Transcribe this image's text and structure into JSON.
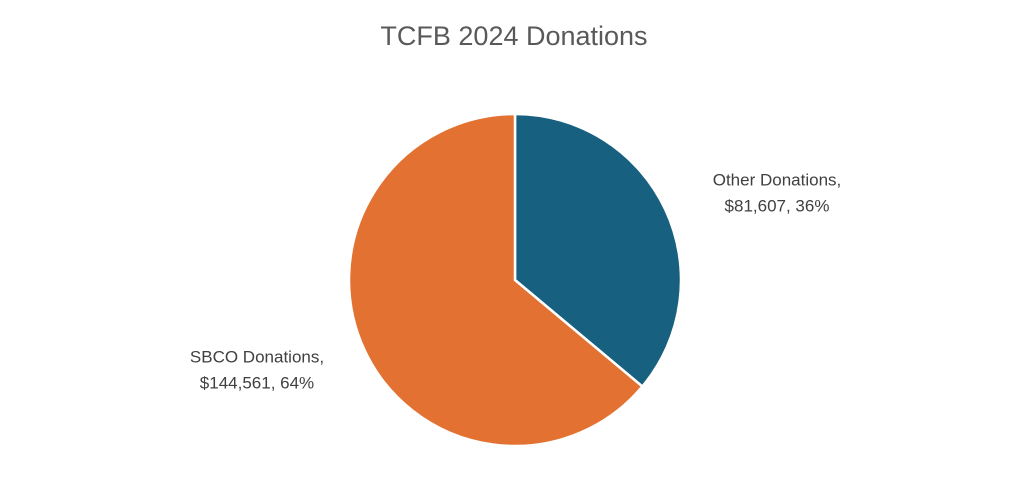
{
  "chart_data": {
    "type": "pie",
    "title": "TCFB 2024 Donations",
    "categories": [
      "Other Donations,",
      "SBCO Donations,"
    ],
    "values": [
      81607,
      144561
    ],
    "value_labels": [
      "$81,607, 36%",
      "$144,561, 64%"
    ],
    "colors": [
      "#17607f",
      "#e37232"
    ]
  }
}
